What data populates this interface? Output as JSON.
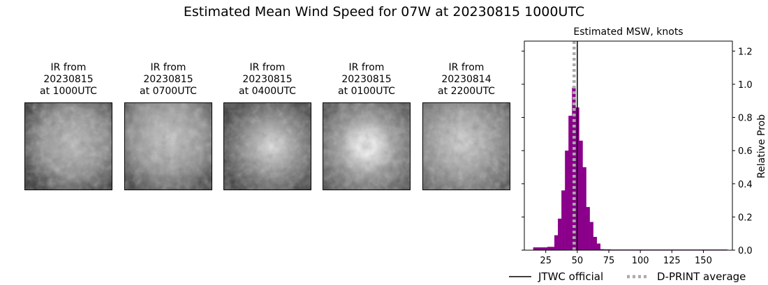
{
  "title": "Estimated Mean Wind Speed for 07W at 20230815 1000UTC",
  "ir_panels": [
    {
      "line1": "IR from",
      "line2": "20230815",
      "line3": "at 1000UTC"
    },
    {
      "line1": "IR from",
      "line2": "20230815",
      "line3": "at 0700UTC"
    },
    {
      "line1": "IR from",
      "line2": "20230815",
      "line3": "at 0400UTC"
    },
    {
      "line1": "IR from",
      "line2": "20230815",
      "line3": "at 0100UTC"
    },
    {
      "line1": "IR from",
      "line2": "20230814",
      "line3": "at 2200UTC"
    }
  ],
  "chart_data": {
    "type": "bar",
    "title": "Estimated MSW, knots",
    "xlabel": "",
    "ylabel": "Relative Prob",
    "xlim": [
      8,
      173
    ],
    "ylim": [
      0,
      1.26
    ],
    "xticks": [
      25,
      50,
      75,
      100,
      125,
      150
    ],
    "yticks": [
      0.0,
      0.2,
      0.4,
      0.6,
      0.8,
      1.0,
      1.2
    ],
    "ytick_labels": [
      "0.0",
      "0.2",
      "0.4",
      "0.6",
      "0.8",
      "1.0",
      "1.2"
    ],
    "y_axis_side": "right",
    "bin_width": 2.8,
    "bar_color": "#8b008b",
    "bins": [
      {
        "x": 15,
        "v": 0.017
      },
      {
        "x": 17.8,
        "v": 0.017
      },
      {
        "x": 20.6,
        "v": 0.017
      },
      {
        "x": 23.4,
        "v": 0.017
      },
      {
        "x": 26.2,
        "v": 0.02
      },
      {
        "x": 29.0,
        "v": 0.02
      },
      {
        "x": 31.8,
        "v": 0.09
      },
      {
        "x": 34.6,
        "v": 0.19
      },
      {
        "x": 37.4,
        "v": 0.36
      },
      {
        "x": 40.2,
        "v": 0.6
      },
      {
        "x": 43.0,
        "v": 0.81
      },
      {
        "x": 45.8,
        "v": 0.98
      },
      {
        "x": 48.6,
        "v": 0.86
      },
      {
        "x": 51.4,
        "v": 0.66
      },
      {
        "x": 54.2,
        "v": 0.5
      },
      {
        "x": 57.0,
        "v": 0.26
      },
      {
        "x": 59.8,
        "v": 0.17
      },
      {
        "x": 62.6,
        "v": 0.08
      },
      {
        "x": 65.4,
        "v": 0.04
      },
      {
        "x": 68.2,
        "v": 0.006
      },
      {
        "x": 71.0,
        "v": 0.005
      },
      {
        "x": 73.8,
        "v": 0.005
      },
      {
        "x": 76.6,
        "v": 0.004
      },
      {
        "x": 79.4,
        "v": 0.004
      },
      {
        "x": 82.2,
        "v": 0.004
      },
      {
        "x": 85.0,
        "v": 0.004
      },
      {
        "x": 87.8,
        "v": 0.004
      },
      {
        "x": 90.6,
        "v": 0.004
      },
      {
        "x": 93.4,
        "v": 0.004
      },
      {
        "x": 96.2,
        "v": 0.004
      },
      {
        "x": 99.0,
        "v": 0.004
      },
      {
        "x": 101.8,
        "v": 0.004
      },
      {
        "x": 104.6,
        "v": 0.004
      },
      {
        "x": 107.4,
        "v": 0.004
      },
      {
        "x": 110.2,
        "v": 0.004
      },
      {
        "x": 113.0,
        "v": 0.004
      },
      {
        "x": 115.8,
        "v": 0.004
      },
      {
        "x": 118.6,
        "v": 0.004
      },
      {
        "x": 121.4,
        "v": 0.004
      },
      {
        "x": 124.2,
        "v": 0.004
      },
      {
        "x": 127.0,
        "v": 0.004
      },
      {
        "x": 129.8,
        "v": 0.004
      },
      {
        "x": 132.6,
        "v": 0.004
      },
      {
        "x": 135.4,
        "v": 0.004
      },
      {
        "x": 138.2,
        "v": 0.004
      },
      {
        "x": 141.0,
        "v": 0.004
      },
      {
        "x": 143.8,
        "v": 0.004
      },
      {
        "x": 146.6,
        "v": 0.004
      },
      {
        "x": 149.4,
        "v": 0.004
      },
      {
        "x": 152.2,
        "v": 0.004
      },
      {
        "x": 155.0,
        "v": 0.004
      },
      {
        "x": 157.8,
        "v": 0.004
      },
      {
        "x": 160.6,
        "v": 0.004
      },
      {
        "x": 163.4,
        "v": 0.004
      },
      {
        "x": 166.2,
        "v": 0.004
      }
    ],
    "jtwc_official": 50,
    "dprint_average": 47.5,
    "legend": [
      {
        "label": "JTWC official",
        "color": "#000000",
        "style": "solid"
      },
      {
        "label": "D-PRINT average",
        "color": "#aaaaaa",
        "style": "dotted"
      }
    ],
    "legend_position": "below"
  }
}
